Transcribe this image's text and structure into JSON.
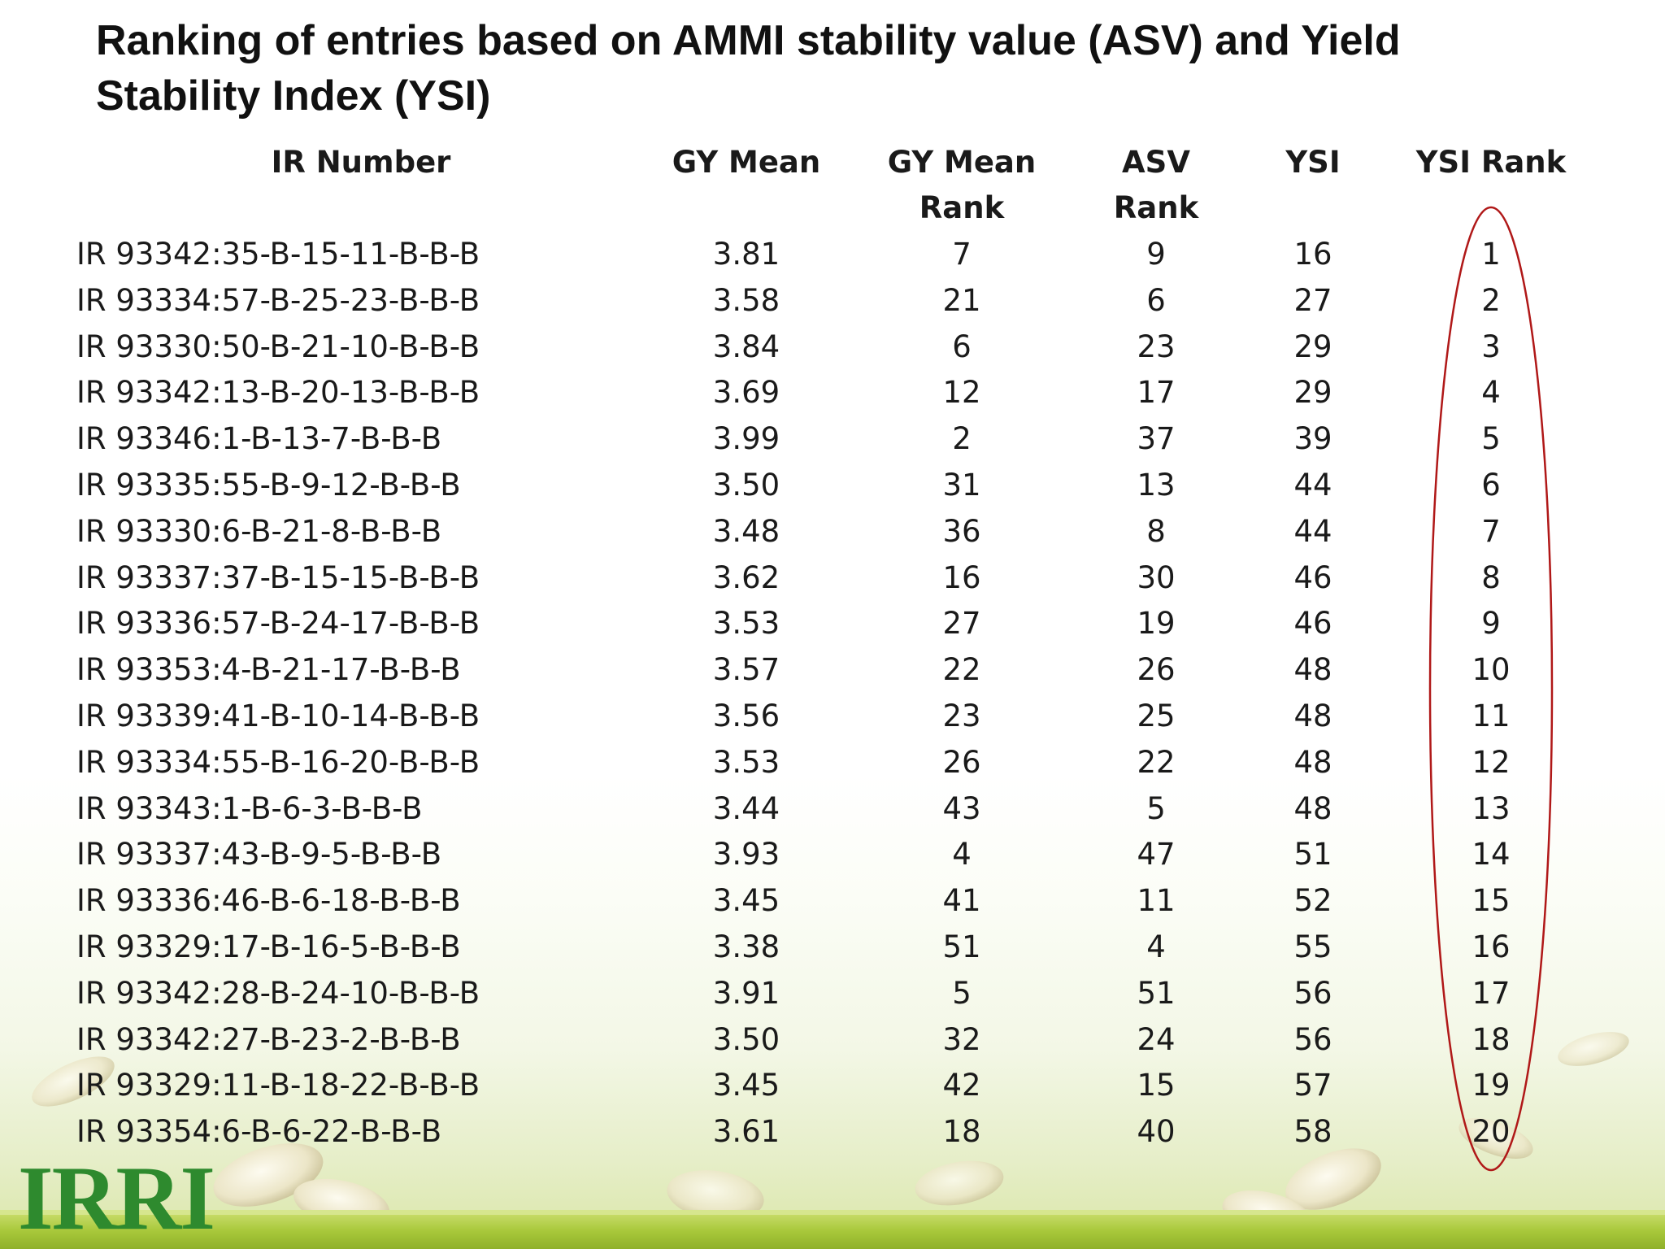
{
  "title": "Ranking of entries based on AMMI stability value (ASV) and Yield Stability Index (YSI)",
  "columns": {
    "ir": "IR Number",
    "gy": "GY Mean",
    "gyr": "GY Mean\nRank",
    "asv": "ASV\nRank",
    "ysi": "YSI",
    "ysr": "YSI Rank"
  },
  "rows": [
    {
      "ir": "IR 93342:35-B-15-11-B-B-B",
      "gy": "3.81",
      "gyr": "7",
      "asv": "9",
      "ysi": "16",
      "ysr": "1"
    },
    {
      "ir": "IR 93334:57-B-25-23-B-B-B",
      "gy": "3.58",
      "gyr": "21",
      "asv": "6",
      "ysi": "27",
      "ysr": "2"
    },
    {
      "ir": "IR 93330:50-B-21-10-B-B-B",
      "gy": "3.84",
      "gyr": "6",
      "asv": "23",
      "ysi": "29",
      "ysr": "3"
    },
    {
      "ir": "IR 93342:13-B-20-13-B-B-B",
      "gy": "3.69",
      "gyr": "12",
      "asv": "17",
      "ysi": "29",
      "ysr": "4"
    },
    {
      "ir": "IR 93346:1-B-13-7-B-B-B",
      "gy": "3.99",
      "gyr": "2",
      "asv": "37",
      "ysi": "39",
      "ysr": "5"
    },
    {
      "ir": "IR 93335:55-B-9-12-B-B-B",
      "gy": "3.50",
      "gyr": "31",
      "asv": "13",
      "ysi": "44",
      "ysr": "6"
    },
    {
      "ir": "IR 93330:6-B-21-8-B-B-B",
      "gy": "3.48",
      "gyr": "36",
      "asv": "8",
      "ysi": "44",
      "ysr": "7"
    },
    {
      "ir": "IR 93337:37-B-15-15-B-B-B",
      "gy": "3.62",
      "gyr": "16",
      "asv": "30",
      "ysi": "46",
      "ysr": "8"
    },
    {
      "ir": "IR 93336:57-B-24-17-B-B-B",
      "gy": "3.53",
      "gyr": "27",
      "asv": "19",
      "ysi": "46",
      "ysr": "9"
    },
    {
      "ir": "IR 93353:4-B-21-17-B-B-B",
      "gy": "3.57",
      "gyr": "22",
      "asv": "26",
      "ysi": "48",
      "ysr": "10"
    },
    {
      "ir": "IR 93339:41-B-10-14-B-B-B",
      "gy": "3.56",
      "gyr": "23",
      "asv": "25",
      "ysi": "48",
      "ysr": "11"
    },
    {
      "ir": "IR 93334:55-B-16-20-B-B-B",
      "gy": "3.53",
      "gyr": "26",
      "asv": "22",
      "ysi": "48",
      "ysr": "12"
    },
    {
      "ir": "IR 93343:1-B-6-3-B-B-B",
      "gy": "3.44",
      "gyr": "43",
      "asv": "5",
      "ysi": "48",
      "ysr": "13"
    },
    {
      "ir": "IR 93337:43-B-9-5-B-B-B",
      "gy": "3.93",
      "gyr": "4",
      "asv": "47",
      "ysi": "51",
      "ysr": "14"
    },
    {
      "ir": "IR 93336:46-B-6-18-B-B-B",
      "gy": "3.45",
      "gyr": "41",
      "asv": "11",
      "ysi": "52",
      "ysr": "15"
    },
    {
      "ir": "IR 93329:17-B-16-5-B-B-B",
      "gy": "3.38",
      "gyr": "51",
      "asv": "4",
      "ysi": "55",
      "ysr": "16"
    },
    {
      "ir": "IR 93342:28-B-24-10-B-B-B",
      "gy": "3.91",
      "gyr": "5",
      "asv": "51",
      "ysi": "56",
      "ysr": "17"
    },
    {
      "ir": "IR 93342:27-B-23-2-B-B-B",
      "gy": "3.50",
      "gyr": "32",
      "asv": "24",
      "ysi": "56",
      "ysr": "18"
    },
    {
      "ir": "IR 93329:11-B-18-22-B-B-B",
      "gy": "3.45",
      "gyr": "42",
      "asv": "15",
      "ysi": "57",
      "ysr": "19"
    },
    {
      "ir": "IR 93354:6-B-6-22-B-B-B",
      "gy": "3.61",
      "gyr": "18",
      "asv": "40",
      "ysi": "58",
      "ysr": "20"
    }
  ],
  "logo": "IRRI",
  "colors": {
    "highlight_oval": "#b01818",
    "logo_green": "#2e8a2e",
    "footer_band": "#a8c83a"
  }
}
